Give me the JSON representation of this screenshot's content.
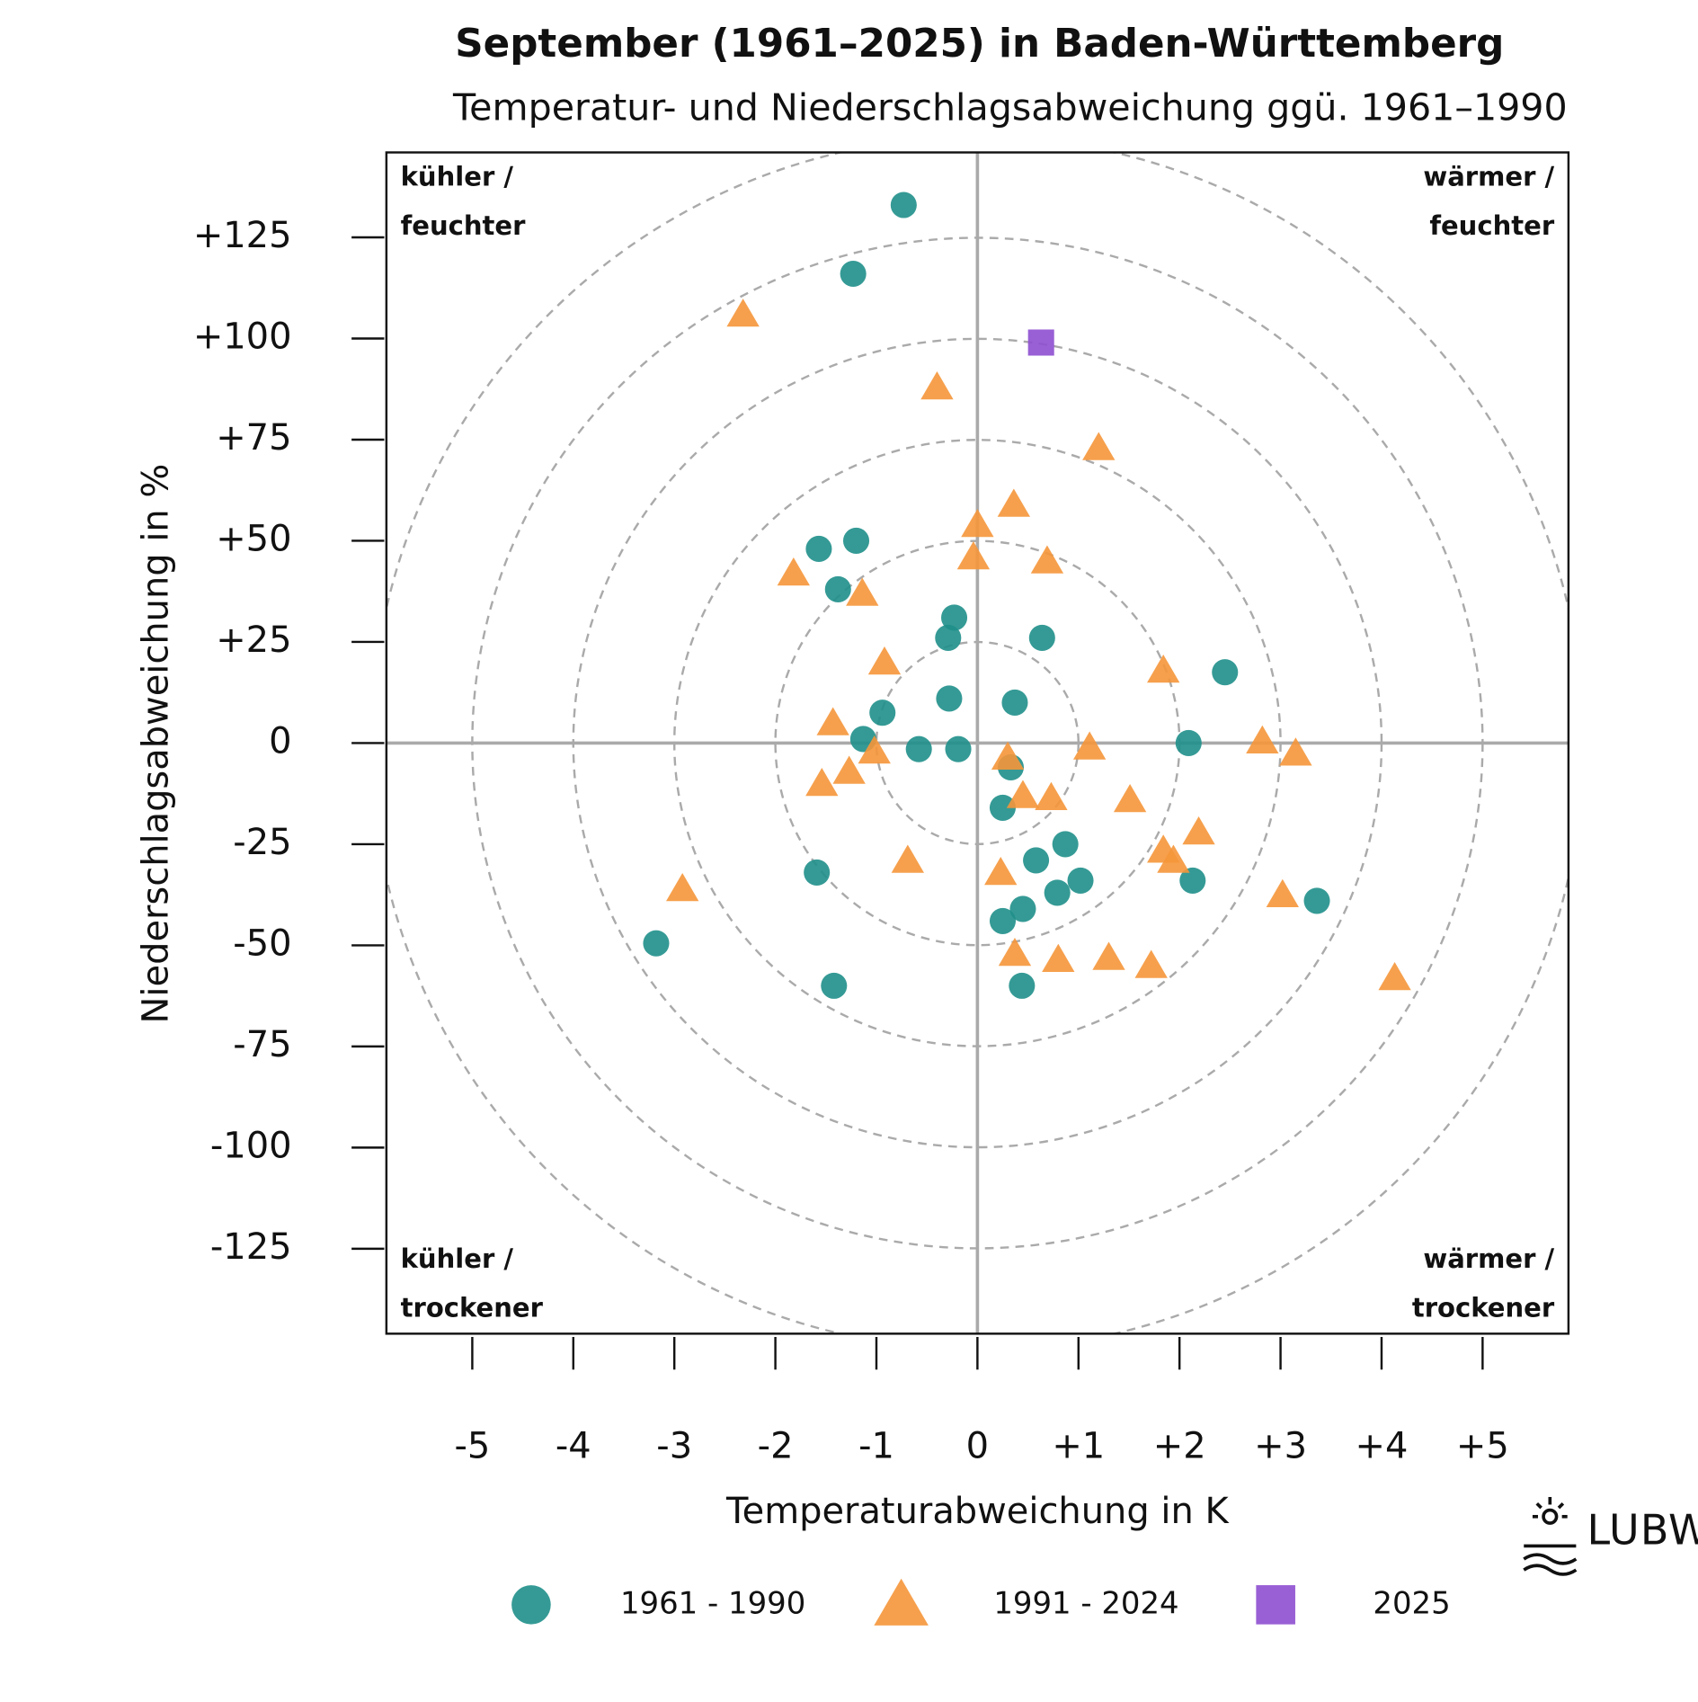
{
  "chart_data": {
    "type": "scatter",
    "title": "September (1961–2025) in Baden-Württemberg",
    "subtitle": "Temperatur- und Niederschlagsabweichung ggü. 1961–1990",
    "x_label": "Temperaturabweichung in K",
    "y_label": "Niederschlagsabweichung in %",
    "quadrant_labels": {
      "top_left": [
        "kühler /",
        "feuchter"
      ],
      "top_right": [
        "wärmer /",
        "feuchter"
      ],
      "bottom_left": [
        "kühler /",
        "trockener"
      ],
      "bottom_right": [
        "wärmer /",
        "trockener"
      ]
    },
    "logo": "LUBW",
    "xlim": [
      -5.85,
      5.85
    ],
    "ylim": [
      -146,
      146
    ],
    "xticks": [
      -5,
      -4,
      -3,
      -2,
      -1,
      0,
      {
        "value": 1,
        "label": "+1"
      },
      {
        "value": 2,
        "label": "+2"
      },
      {
        "value": 3,
        "label": "+3"
      },
      {
        "value": 4,
        "label": "+4"
      },
      {
        "value": 5,
        "label": "+5"
      }
    ],
    "yticks": [
      -125,
      -100,
      -75,
      -50,
      -25,
      0,
      {
        "value": 25,
        "label": "+25"
      },
      {
        "value": 50,
        "label": "+50"
      },
      {
        "value": 75,
        "label": "+75"
      },
      {
        "value": 100,
        "label": "+100"
      },
      {
        "value": 125,
        "label": "+125"
      }
    ],
    "series": [
      {
        "name": "1961 - 1990",
        "color": "#1f8f8a",
        "marker": "circle",
        "x": [
          -0.73,
          -1.23,
          -1.57,
          -1.2,
          -1.38,
          -0.23,
          -0.29,
          0.64,
          -0.28,
          0.37,
          -0.94,
          2.45,
          -1.13,
          -0.58,
          -0.19,
          2.09,
          0.33,
          0.25,
          0.87,
          0.58,
          0.79,
          1.02,
          2.13,
          3.36,
          -1.59,
          0.45,
          0.25,
          -3.18,
          -1.42,
          0.44
        ],
        "values": [
          133,
          116,
          48,
          50,
          38,
          31,
          26,
          26,
          11,
          10,
          7.5,
          17.5,
          1,
          -1.5,
          -1.5,
          0,
          -6,
          -16,
          -25,
          -29,
          -37,
          -34,
          -34,
          -39,
          -32,
          -41,
          -44,
          -49.5,
          -60,
          -60
        ]
      },
      {
        "name": "1991 - 2024",
        "color": "#f5963a",
        "marker": "triangle",
        "x": [
          -2.32,
          -0.4,
          1.2,
          0.36,
          0,
          -0.04,
          0.69,
          -1.82,
          -1.14,
          -0.92,
          1.84,
          -1.43,
          1.11,
          2.82,
          3.15,
          0.3,
          -1.02,
          -1.27,
          -1.54,
          0.45,
          0.73,
          1.51,
          2.19,
          1.84,
          1.94,
          -0.69,
          0.23,
          -2.92,
          3.02,
          0.37,
          0.8,
          1.3,
          1.72,
          4.13
        ],
        "values": [
          106,
          88,
          73,
          59,
          54,
          46,
          45,
          42,
          37,
          20,
          18,
          5,
          -1,
          0.5,
          -2.5,
          -3.5,
          -2,
          -7,
          -10,
          -13,
          -13.5,
          -14,
          -22,
          -26.5,
          -29,
          -29,
          -32,
          -36,
          -37.5,
          -52,
          -53.5,
          -53,
          -55,
          -58
        ]
      },
      {
        "name": "2025",
        "color": "#8e4fd0",
        "marker": "square",
        "x": [
          0.63
        ],
        "values": [
          99
        ]
      }
    ]
  }
}
